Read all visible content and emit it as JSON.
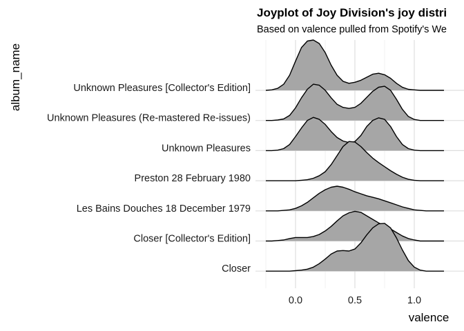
{
  "chart_data": {
    "type": "ridgeline",
    "title": "Joyplot of Joy Division's joy distri",
    "subtitle": "Based on valence pulled from Spotify's We",
    "xlabel": "valence",
    "ylabel": "album_name",
    "xlim": [
      -0.3,
      1.25
    ],
    "xticks": [
      "0.0",
      "0.5",
      "1.0"
    ],
    "xtick_values": [
      0.0,
      0.5,
      1.0
    ],
    "grid": true,
    "fill_color": "#A6A6A6",
    "line_color": "#000000",
    "categories": [
      "Unknown Pleasures [Collector's Edition]",
      "Unknown Pleasures (Re-mastered Re-issues)",
      "Unknown Pleasures",
      "Preston 28 February 1980",
      "Les Bains Douches 18 December 1979",
      "Closer [Collector's Edition]",
      "Closer"
    ],
    "series": [
      {
        "name": "Unknown Pleasures [Collector's Edition]",
        "x": [
          -0.25,
          -0.2,
          -0.15,
          -0.1,
          -0.05,
          0.0,
          0.05,
          0.1,
          0.15,
          0.2,
          0.25,
          0.3,
          0.35,
          0.4,
          0.45,
          0.5,
          0.55,
          0.6,
          0.65,
          0.7,
          0.75,
          0.8,
          0.85,
          0.9,
          0.95,
          1.0,
          1.05,
          1.1,
          1.15,
          1.2,
          1.25
        ],
        "density": [
          0.0,
          0.01,
          0.04,
          0.12,
          0.3,
          0.58,
          0.85,
          0.98,
          1.0,
          0.93,
          0.75,
          0.5,
          0.3,
          0.18,
          0.14,
          0.16,
          0.2,
          0.26,
          0.32,
          0.34,
          0.31,
          0.24,
          0.14,
          0.06,
          0.02,
          0.01,
          0.0,
          0.0,
          0.0,
          0.0,
          0.0
        ]
      },
      {
        "name": "Unknown Pleasures (Re-mastered Re-issues)",
        "x": [
          -0.25,
          -0.2,
          -0.15,
          -0.1,
          -0.05,
          0.0,
          0.05,
          0.1,
          0.15,
          0.2,
          0.25,
          0.3,
          0.35,
          0.4,
          0.45,
          0.5,
          0.55,
          0.6,
          0.65,
          0.7,
          0.75,
          0.8,
          0.85,
          0.9,
          0.95,
          1.0,
          1.05,
          1.1,
          1.15,
          1.2,
          1.25
        ],
        "density": [
          0.0,
          0.0,
          0.01,
          0.03,
          0.1,
          0.25,
          0.45,
          0.62,
          0.72,
          0.7,
          0.6,
          0.45,
          0.32,
          0.26,
          0.24,
          0.26,
          0.34,
          0.46,
          0.58,
          0.66,
          0.68,
          0.6,
          0.42,
          0.22,
          0.08,
          0.02,
          0.0,
          0.0,
          0.0,
          0.0,
          0.0
        ]
      },
      {
        "name": "Unknown Pleasures",
        "x": [
          -0.25,
          -0.2,
          -0.15,
          -0.1,
          -0.05,
          0.0,
          0.05,
          0.1,
          0.15,
          0.2,
          0.25,
          0.3,
          0.35,
          0.4,
          0.45,
          0.5,
          0.55,
          0.6,
          0.65,
          0.7,
          0.75,
          0.8,
          0.85,
          0.9,
          0.95,
          1.0,
          1.05,
          1.1,
          1.15,
          1.2,
          1.25
        ],
        "density": [
          0.0,
          0.0,
          0.01,
          0.04,
          0.12,
          0.28,
          0.45,
          0.6,
          0.66,
          0.62,
          0.52,
          0.38,
          0.26,
          0.19,
          0.16,
          0.18,
          0.3,
          0.48,
          0.6,
          0.65,
          0.62,
          0.48,
          0.28,
          0.12,
          0.04,
          0.01,
          0.0,
          0.0,
          0.0,
          0.0,
          0.0
        ]
      },
      {
        "name": "Preston 28 February 1980",
        "x": [
          -0.25,
          -0.2,
          -0.15,
          -0.1,
          -0.05,
          0.0,
          0.05,
          0.1,
          0.15,
          0.2,
          0.25,
          0.3,
          0.35,
          0.4,
          0.45,
          0.5,
          0.55,
          0.6,
          0.65,
          0.7,
          0.75,
          0.8,
          0.85,
          0.9,
          0.95,
          1.0,
          1.05,
          1.1,
          1.15,
          1.2,
          1.25
        ],
        "density": [
          0.0,
          0.0,
          0.0,
          0.0,
          0.0,
          0.0,
          0.01,
          0.02,
          0.05,
          0.1,
          0.18,
          0.32,
          0.5,
          0.68,
          0.78,
          0.77,
          0.68,
          0.56,
          0.45,
          0.36,
          0.28,
          0.2,
          0.13,
          0.07,
          0.03,
          0.01,
          0.0,
          0.0,
          0.0,
          0.0,
          0.0
        ]
      },
      {
        "name": "Les Bains Douches 18 December 1979",
        "x": [
          -0.25,
          -0.2,
          -0.15,
          -0.1,
          -0.05,
          0.0,
          0.05,
          0.1,
          0.15,
          0.2,
          0.25,
          0.3,
          0.35,
          0.4,
          0.45,
          0.5,
          0.55,
          0.6,
          0.65,
          0.7,
          0.75,
          0.8,
          0.85,
          0.9,
          0.95,
          1.0,
          1.05,
          1.1,
          1.15,
          1.2,
          1.25
        ],
        "density": [
          0.0,
          0.0,
          0.0,
          0.01,
          0.02,
          0.05,
          0.1,
          0.17,
          0.26,
          0.35,
          0.42,
          0.47,
          0.49,
          0.47,
          0.43,
          0.38,
          0.34,
          0.3,
          0.27,
          0.24,
          0.2,
          0.16,
          0.12,
          0.08,
          0.05,
          0.02,
          0.01,
          0.0,
          0.0,
          0.0,
          0.0
        ]
      },
      {
        "name": "Closer [Collector's Edition]",
        "x": [
          -0.25,
          -0.2,
          -0.15,
          -0.1,
          -0.05,
          0.0,
          0.05,
          0.1,
          0.15,
          0.2,
          0.25,
          0.3,
          0.35,
          0.4,
          0.45,
          0.5,
          0.55,
          0.6,
          0.65,
          0.7,
          0.75,
          0.8,
          0.85,
          0.9,
          0.95,
          1.0,
          1.05,
          1.1,
          1.15,
          1.2,
          1.25
        ],
        "density": [
          0.0,
          0.0,
          0.01,
          0.02,
          0.05,
          0.07,
          0.07,
          0.07,
          0.09,
          0.13,
          0.2,
          0.29,
          0.4,
          0.5,
          0.56,
          0.59,
          0.57,
          0.5,
          0.43,
          0.36,
          0.3,
          0.24,
          0.17,
          0.1,
          0.05,
          0.02,
          0.0,
          0.0,
          0.0,
          0.0,
          0.0
        ]
      },
      {
        "name": "Closer",
        "x": [
          -0.25,
          -0.2,
          -0.15,
          -0.1,
          -0.05,
          0.0,
          0.05,
          0.1,
          0.15,
          0.2,
          0.25,
          0.3,
          0.35,
          0.4,
          0.45,
          0.5,
          0.55,
          0.6,
          0.65,
          0.7,
          0.75,
          0.8,
          0.85,
          0.9,
          0.95,
          1.0,
          1.05,
          1.1,
          1.15,
          1.2,
          1.25
        ],
        "density": [
          0.0,
          0.0,
          0.0,
          0.0,
          0.0,
          0.01,
          0.02,
          0.04,
          0.08,
          0.15,
          0.24,
          0.34,
          0.4,
          0.41,
          0.4,
          0.44,
          0.56,
          0.72,
          0.86,
          0.94,
          0.95,
          0.86,
          0.66,
          0.42,
          0.21,
          0.08,
          0.02,
          0.0,
          0.0,
          0.0,
          0.0
        ]
      }
    ]
  }
}
